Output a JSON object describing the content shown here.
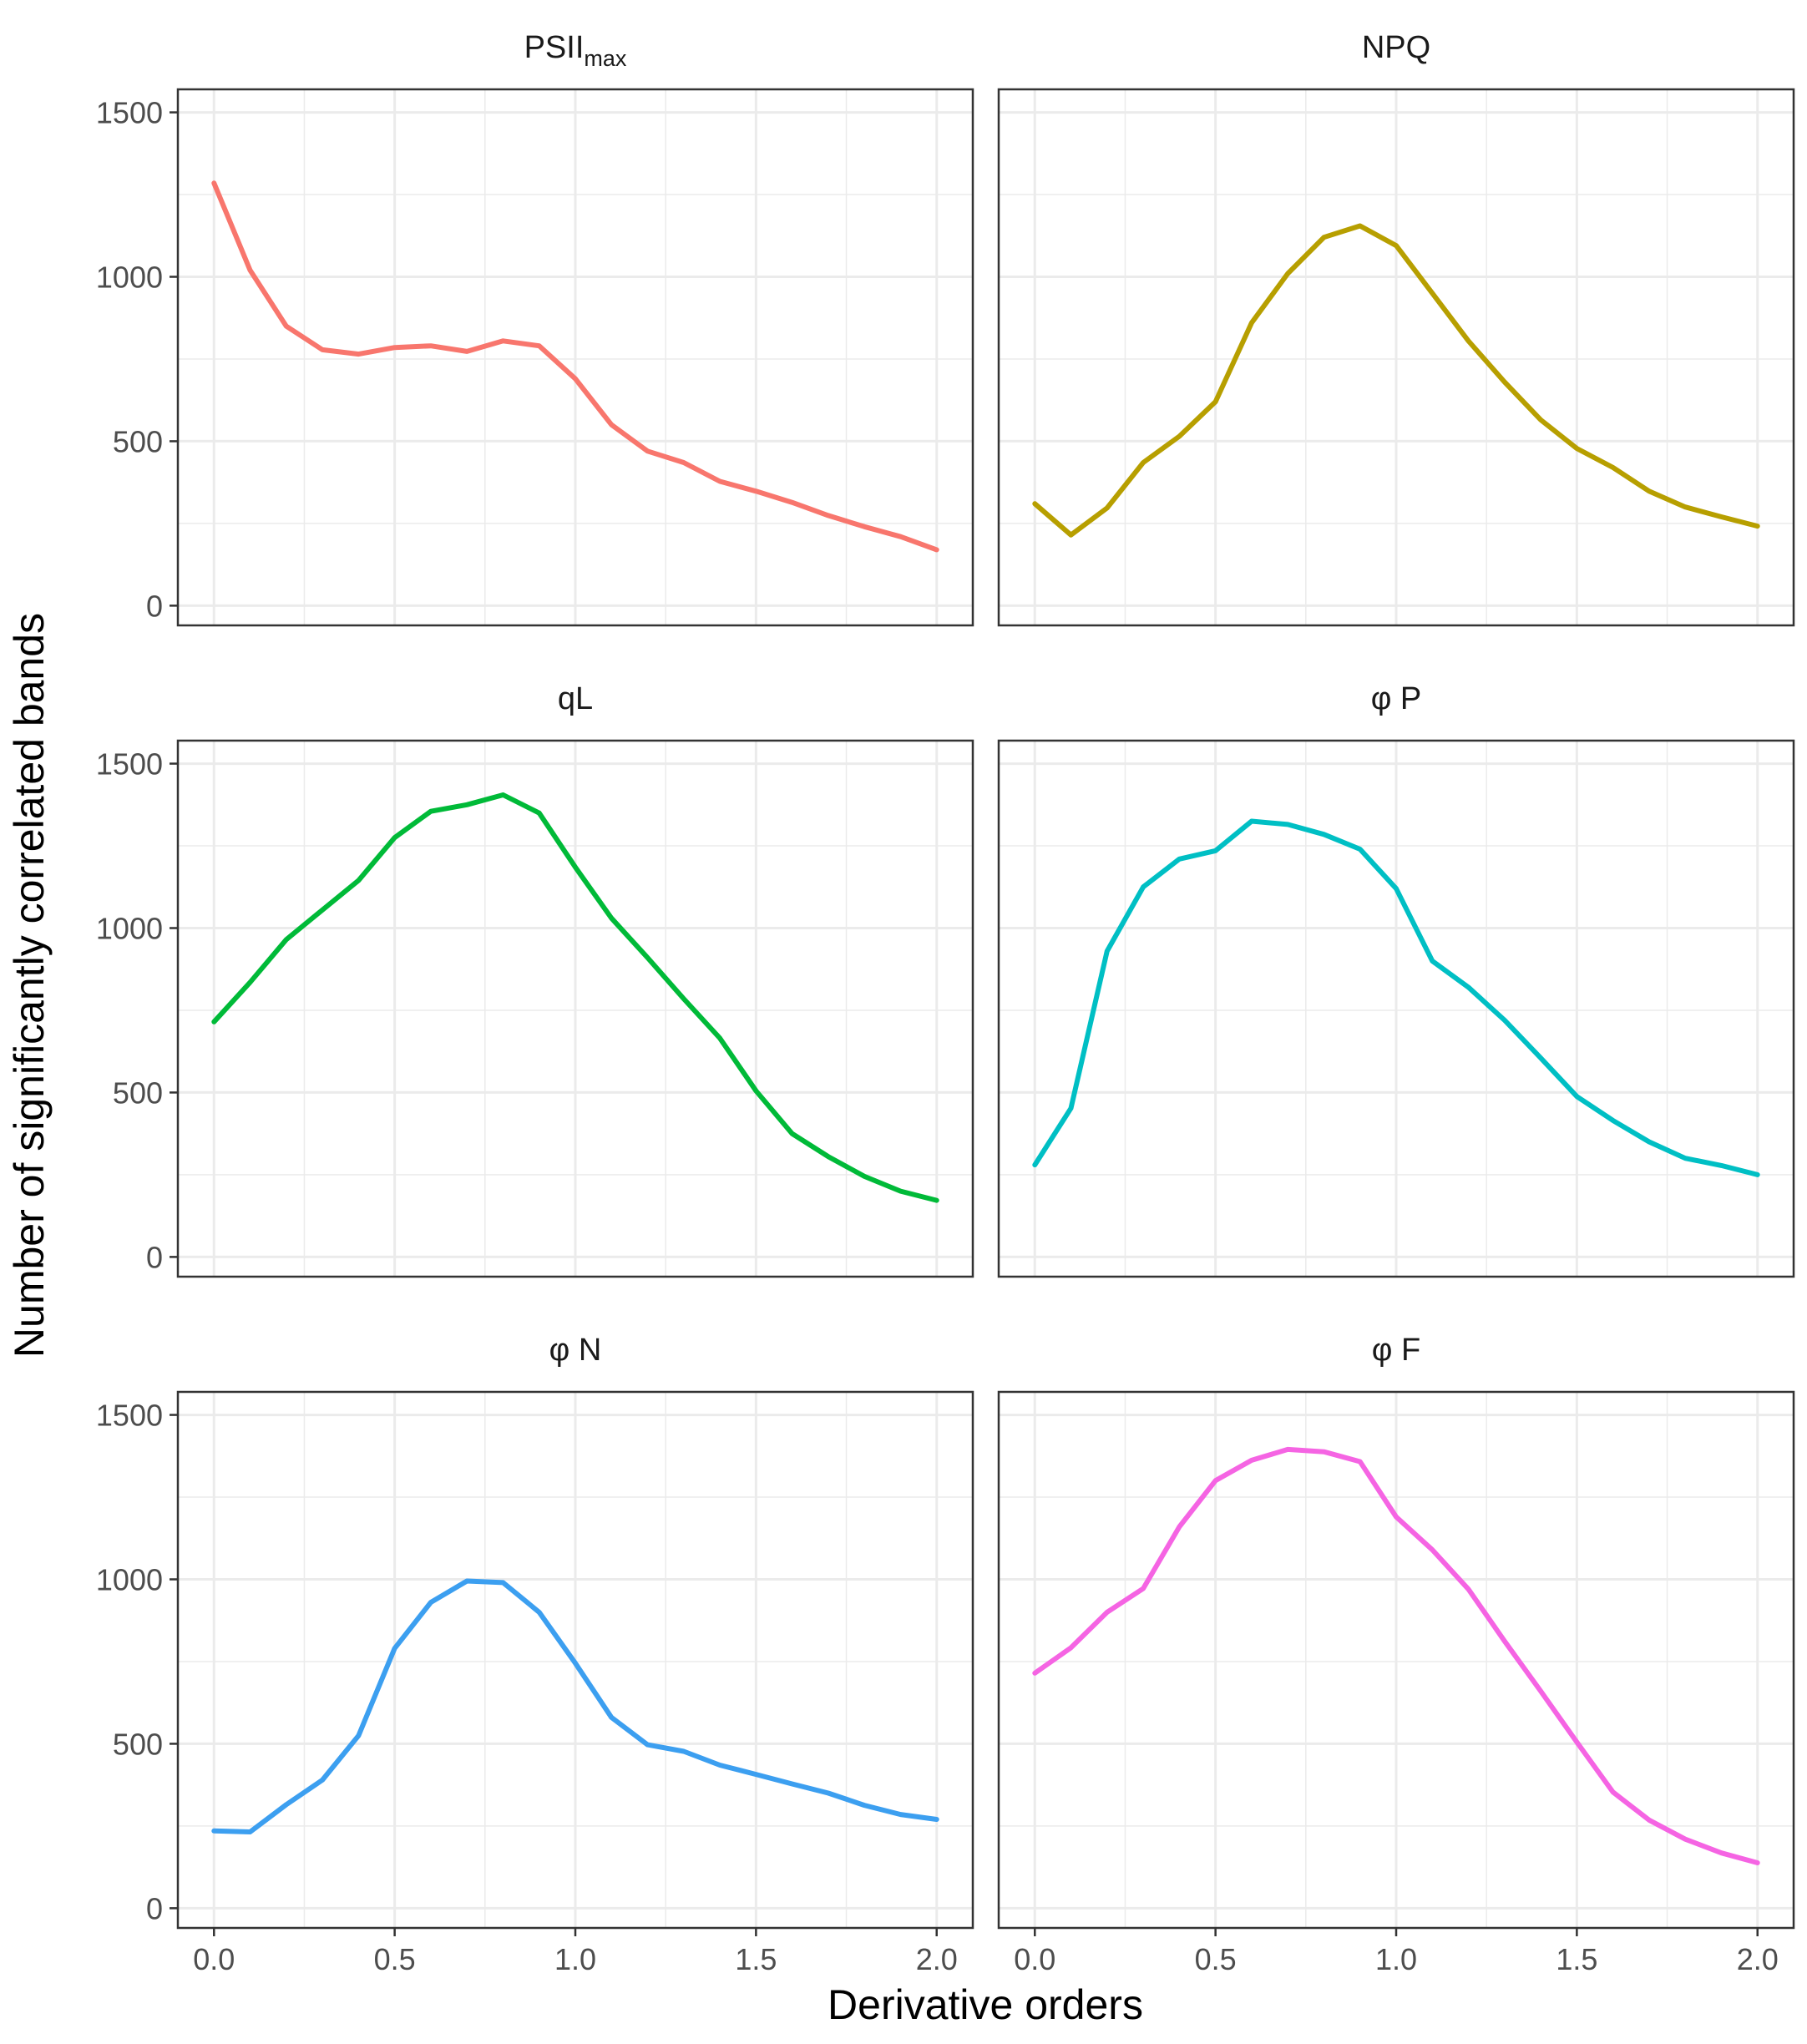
{
  "chart_data": {
    "type": "line",
    "xlabel": "Derivative orders",
    "ylabel": "Number of significantly correlated bands",
    "xlim": [
      -0.1,
      2.1
    ],
    "ylim": [
      -60,
      1570
    ],
    "x_ticks": [
      0.0,
      0.5,
      1.0,
      1.5,
      2.0
    ],
    "x_tick_labels": [
      "0.0",
      "0.5",
      "1.0",
      "1.5",
      "2.0"
    ],
    "y_ticks": [
      0,
      500,
      1000,
      1500
    ],
    "y_tick_labels": [
      "0",
      "500",
      "1000",
      "1500"
    ],
    "x": [
      0.0,
      0.1,
      0.2,
      0.3,
      0.4,
      0.5,
      0.6,
      0.7,
      0.8,
      0.9,
      1.0,
      1.1,
      1.2,
      1.3,
      1.4,
      1.5,
      1.6,
      1.7,
      1.8,
      1.9,
      2.0
    ],
    "series": [
      {
        "name": "PSIImax",
        "title_main": "PSII",
        "title_sub": "max",
        "color": "#F8766D",
        "values": [
          1285,
          1020,
          850,
          778,
          765,
          785,
          790,
          773,
          805,
          790,
          690,
          550,
          470,
          435,
          378,
          348,
          314,
          274,
          240,
          210,
          170
        ]
      },
      {
        "name": "NPQ",
        "title_main": "NPQ",
        "title_sub": "",
        "color": "#B79F00",
        "values": [
          310,
          215,
          297,
          435,
          515,
          620,
          860,
          1010,
          1120,
          1155,
          1095,
          950,
          805,
          680,
          565,
          478,
          420,
          348,
          300,
          270,
          242
        ]
      },
      {
        "name": "qL",
        "title_main": "qL",
        "title_sub": "",
        "color": "#00BA38",
        "values": [
          715,
          835,
          965,
          1055,
          1145,
          1275,
          1355,
          1375,
          1405,
          1350,
          1185,
          1030,
          910,
          785,
          665,
          505,
          375,
          305,
          245,
          200,
          172
        ]
      },
      {
        "name": "φ P",
        "title_main": "φ P",
        "title_sub": "",
        "color": "#00BFC4",
        "values": [
          280,
          452,
          930,
          1125,
          1210,
          1235,
          1325,
          1315,
          1285,
          1240,
          1120,
          900,
          820,
          720,
          605,
          488,
          415,
          350,
          300,
          278,
          250
        ]
      },
      {
        "name": "φ N",
        "title_main": "φ N",
        "title_sub": "",
        "color": "#3C9FF0",
        "values": [
          235,
          232,
          315,
          390,
          525,
          790,
          930,
          995,
          990,
          900,
          745,
          580,
          497,
          477,
          435,
          407,
          378,
          350,
          313,
          285,
          270
        ]
      },
      {
        "name": "φ F",
        "title_main": "φ F",
        "title_sub": "",
        "color": "#F564E3",
        "values": [
          715,
          792,
          900,
          972,
          1160,
          1300,
          1362,
          1395,
          1388,
          1358,
          1190,
          1090,
          970,
          812,
          660,
          505,
          353,
          268,
          210,
          168,
          138
        ]
      }
    ]
  }
}
